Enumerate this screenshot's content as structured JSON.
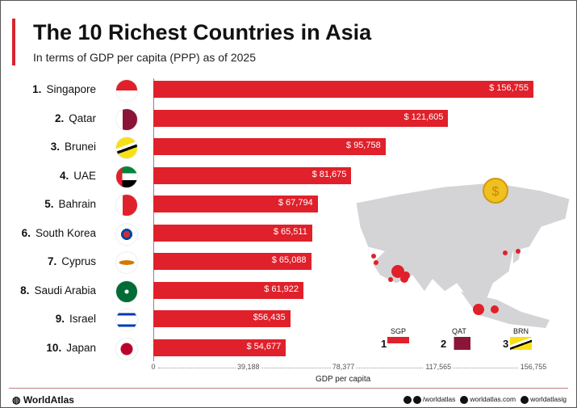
{
  "header": {
    "title": "The 10 Richest Countries in Asia",
    "subtitle": "In terms of GDP per capita (PPP) as of 2025"
  },
  "chart_data": {
    "type": "bar",
    "orientation": "horizontal",
    "title": "The 10 Richest Countries in Asia",
    "subtitle": "In terms of GDP per capita (PPP) as of 2025",
    "xlabel": "GDP per capita",
    "ylabel": "",
    "xlim": [
      0,
      156755
    ],
    "xticks": [
      "0",
      "39,188",
      "78,377",
      "117,565",
      "156,755"
    ],
    "categories": [
      "Singapore",
      "Qatar",
      "Brunei",
      "UAE",
      "Bahrain",
      "South Korea",
      "Cyprus",
      "Saudi Arabia",
      "Israel",
      "Japan"
    ],
    "ranks": [
      "1.",
      "2.",
      "3.",
      "4.",
      "5.",
      "6.",
      "7.",
      "8.",
      "9.",
      "10."
    ],
    "values": [
      156755,
      121605,
      95758,
      81675,
      67794,
      65511,
      65088,
      61922,
      56435,
      54677
    ],
    "labels": [
      "$ 156,755",
      "$ 121,605",
      "$ 95,758",
      "$ 81,675",
      "$ 67,794",
      "$ 65,511",
      "$ 65,088",
      "$ 61,922",
      "$56,435",
      "$ 54,677"
    ],
    "bar_color": "#e0202a",
    "grid": false
  },
  "map_legend": [
    {
      "rank": "1",
      "code": "SGP"
    },
    {
      "rank": "2",
      "code": "QAT"
    },
    {
      "rank": "3",
      "code": "BRN"
    }
  ],
  "footer": {
    "brand": "WorldAtlas",
    "facebook": "/worldatlas",
    "website": "worldatlas.com",
    "instagram": "worldatlasig"
  }
}
